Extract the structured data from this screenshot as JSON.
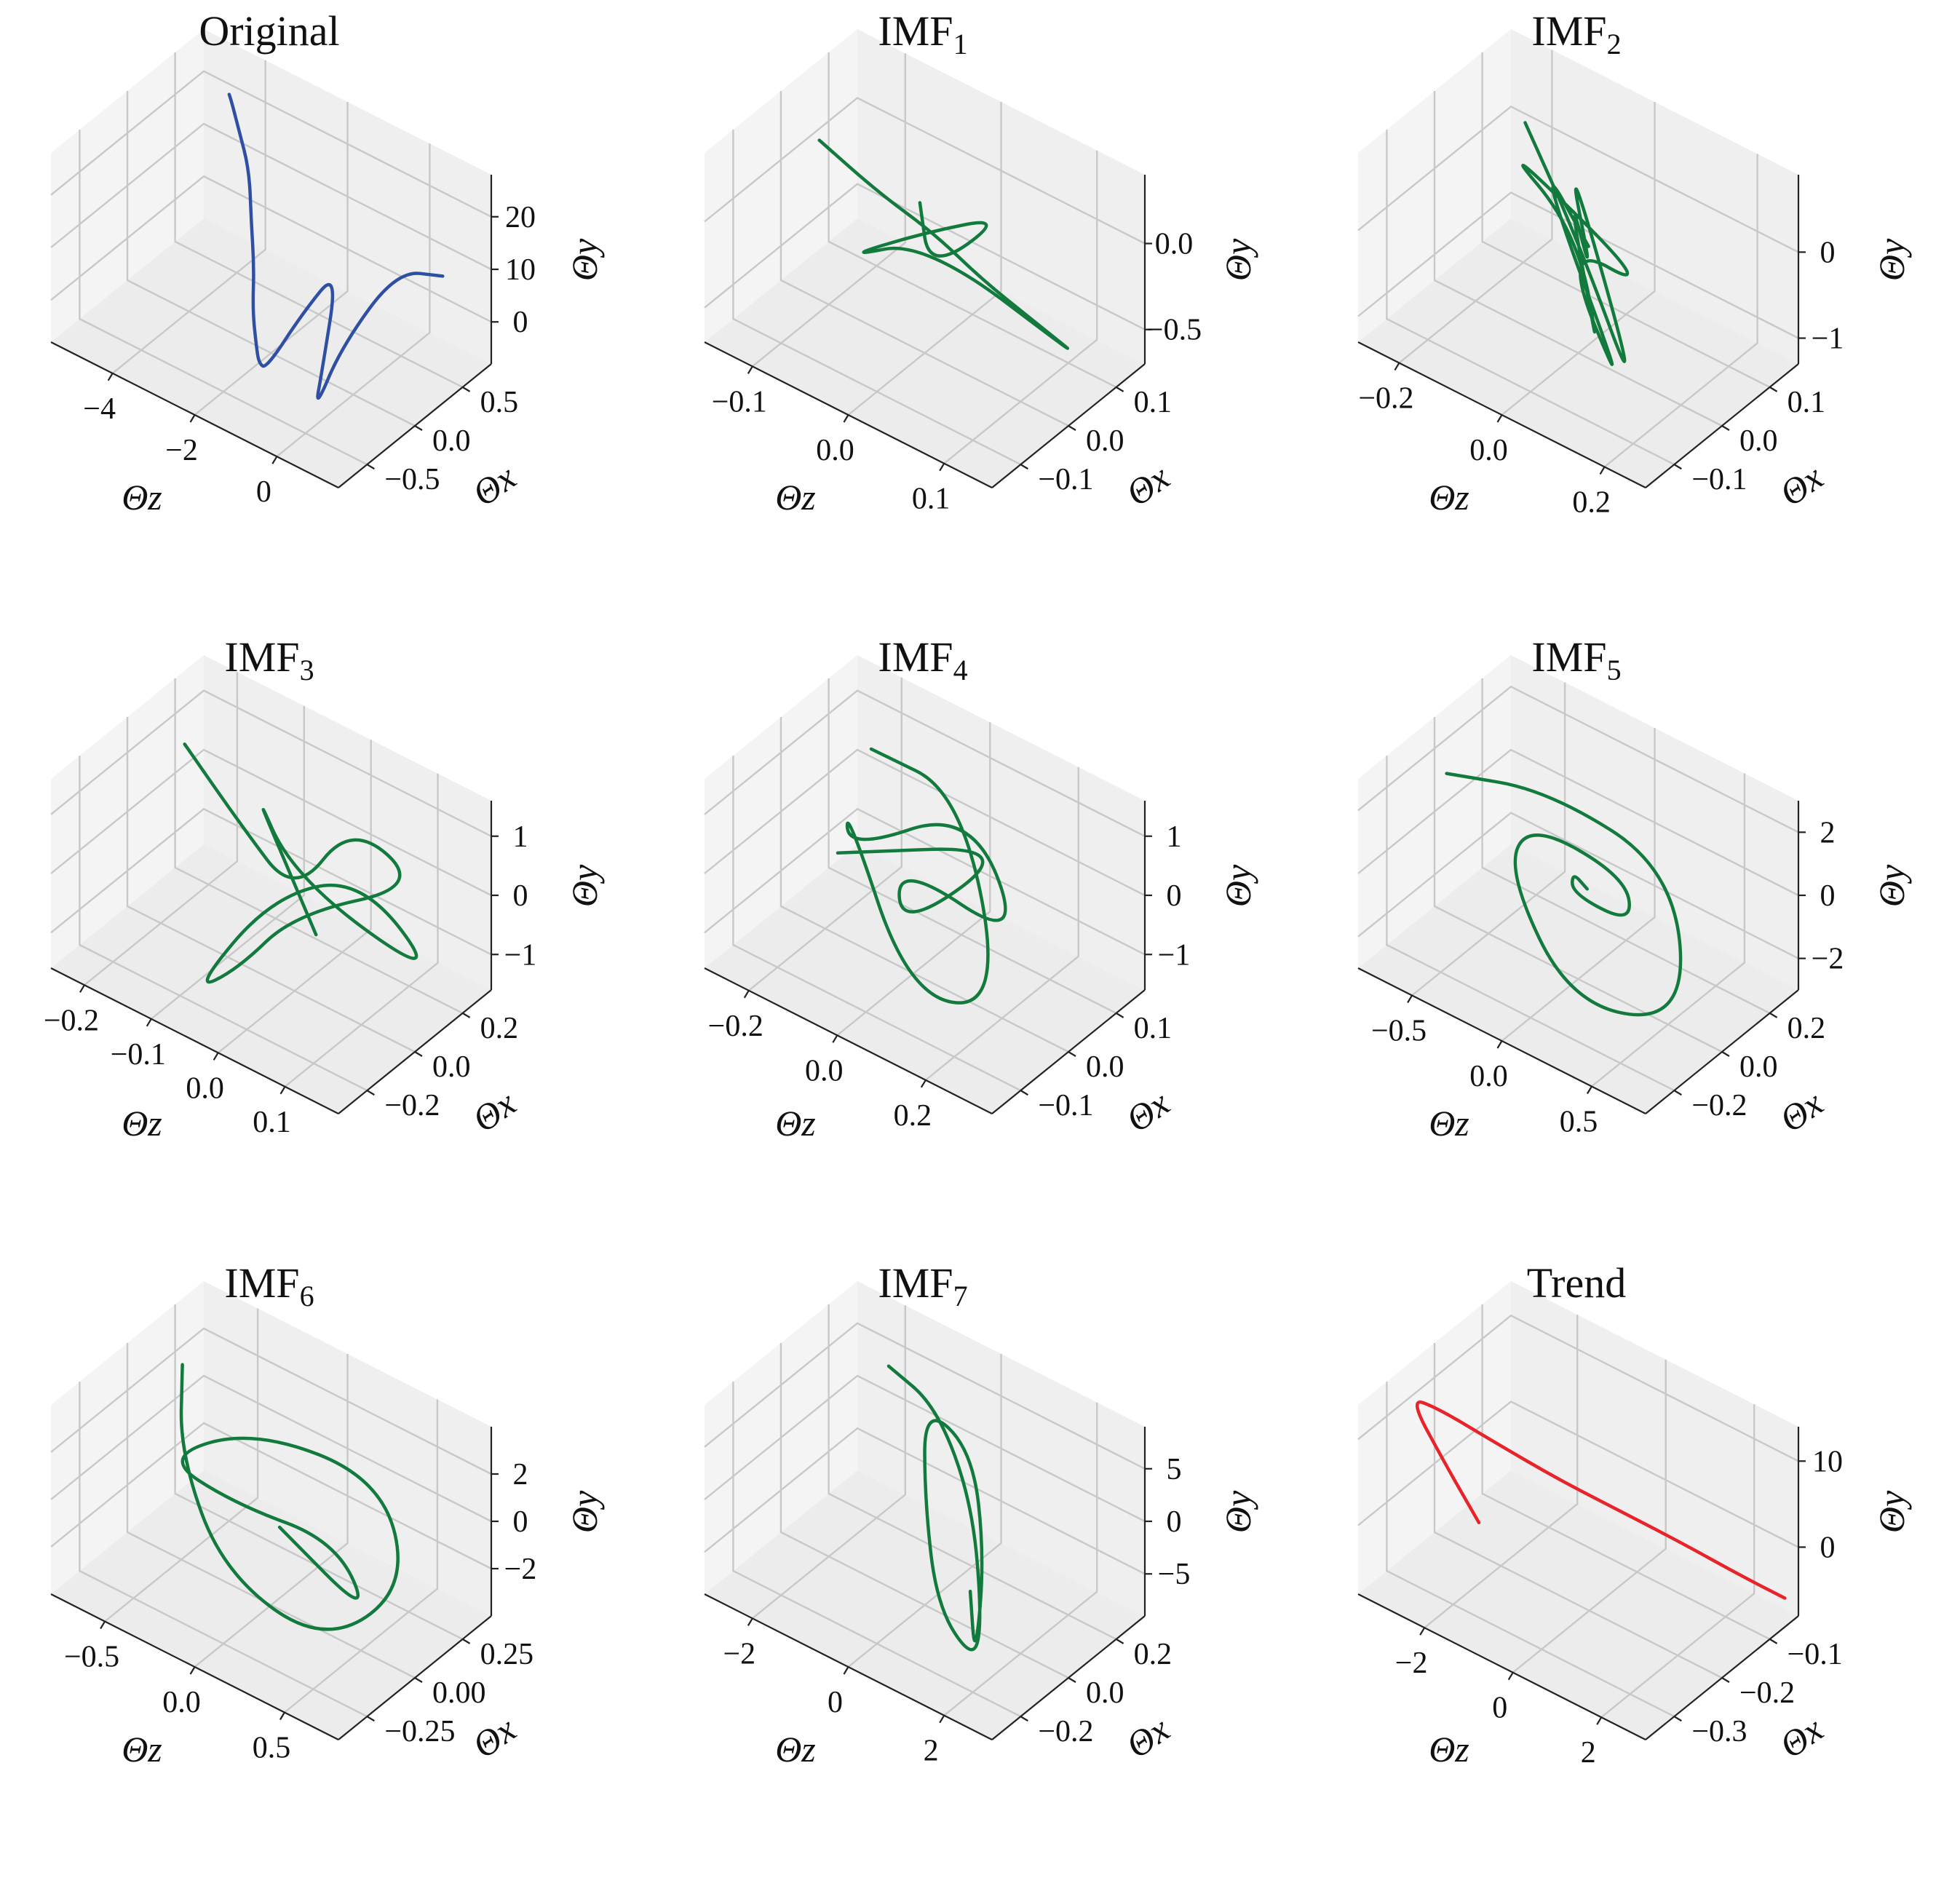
{
  "figure": {
    "colors": {
      "original": "#2f4fa3",
      "imf": "#127a3c",
      "trend": "#e8232a"
    },
    "icons": []
  },
  "chart_data": [
    {
      "type": "line3d",
      "title": "Original",
      "title_base": "Original",
      "title_sub": "",
      "xlabel": "Θz",
      "ylabel": "Θx",
      "zlabel": "Θy",
      "series_color": "original",
      "z_ticks": [
        -4,
        -2,
        0
      ],
      "z_tick_labels": [
        "−4",
        "−2",
        "0"
      ],
      "zlim": [
        -5.5,
        1.5
      ],
      "x_ticks": [
        -0.5,
        0.0,
        0.5
      ],
      "x_tick_labels": [
        "−0.5",
        "0.0",
        "0.5"
      ],
      "xlim": [
        -0.8,
        0.8
      ],
      "y_ticks": [
        0,
        10,
        20
      ],
      "y_tick_labels": [
        "0",
        "10",
        "20"
      ],
      "ylim": [
        -8,
        28
      ],
      "curve": {
        "z": [
          -4.3,
          -4.0,
          -3.6,
          -3.0,
          -2.6,
          -2.3,
          -2.1,
          -1.9,
          -1.6,
          -1.3,
          -1.0,
          -0.6,
          -0.3,
          0.0,
          0.3,
          0.6,
          0.9
        ],
        "x": [
          0.55,
          0.45,
          0.35,
          0.2,
          0.05,
          -0.05,
          -0.15,
          -0.2,
          -0.3,
          -0.35,
          -0.1,
          0.1,
          -0.2,
          -0.4,
          -0.25,
          0.2,
          0.55
        ],
        "y": [
          24,
          25,
          23,
          20,
          14,
          8,
          2,
          -3,
          -4,
          -3,
          5,
          12,
          -2,
          -5,
          6,
          15,
          10
        ]
      }
    },
    {
      "type": "line3d",
      "title": "IMF1",
      "title_base": "IMF",
      "title_sub": "1",
      "xlabel": "Θz",
      "ylabel": "Θx",
      "zlabel": "Θy",
      "series_color": "imf",
      "z_ticks": [
        -0.1,
        0.0,
        0.1
      ],
      "z_tick_labels": [
        "−0.1",
        "0.0",
        "0.1"
      ],
      "zlim": [
        -0.15,
        0.15
      ],
      "x_ticks": [
        -0.1,
        0.0,
        0.1
      ],
      "x_tick_labels": [
        "−0.1",
        "0.0",
        "0.1"
      ],
      "xlim": [
        -0.16,
        0.16
      ],
      "y_ticks": [
        -0.5,
        0.0
      ],
      "y_tick_labels": [
        "−0.5",
        "0.0"
      ],
      "ylim": [
        -0.7,
        0.4
      ],
      "curve": {
        "z": [
          -0.1,
          -0.05,
          0.0,
          0.04,
          0.08,
          0.12,
          0.0,
          -0.06,
          0.0,
          0.06,
          0.02,
          -0.02
        ],
        "x": [
          -0.02,
          0.0,
          0.02,
          0.04,
          0.07,
          0.1,
          0.0,
          -0.05,
          0.0,
          0.05,
          -0.03,
          0.03
        ],
        "y": [
          0.3,
          0.1,
          -0.05,
          -0.25,
          -0.45,
          -0.65,
          -0.05,
          -0.2,
          0.0,
          0.15,
          -0.1,
          0.05
        ]
      }
    },
    {
      "type": "line3d",
      "title": "IMF2",
      "title_base": "IMF",
      "title_sub": "2",
      "xlabel": "Θz",
      "ylabel": "Θx",
      "zlabel": "Θy",
      "series_color": "imf",
      "z_ticks": [
        -0.2,
        0.0,
        0.2
      ],
      "z_tick_labels": [
        "−0.2",
        "0.0",
        "0.2"
      ],
      "zlim": [
        -0.28,
        0.28
      ],
      "x_ticks": [
        -0.1,
        0.0,
        0.1
      ],
      "x_tick_labels": [
        "−0.1",
        "0.0",
        "0.1"
      ],
      "xlim": [
        -0.16,
        0.16
      ],
      "y_ticks": [
        -1,
        0
      ],
      "y_tick_labels": [
        "−1",
        "0"
      ],
      "ylim": [
        -1.3,
        0.9
      ],
      "curve": {
        "z": [
          -0.15,
          0.0,
          0.18,
          -0.1,
          0.05,
          -0.05,
          0.12,
          0.0,
          -0.18,
          0.1,
          0.0,
          0.2,
          -0.12,
          0.02
        ],
        "x": [
          0.05,
          0.0,
          -0.06,
          0.08,
          -0.02,
          0.03,
          -0.08,
          0.0,
          0.02,
          0.06,
          -0.04,
          -0.1,
          0.04,
          0.0
        ],
        "y": [
          0.7,
          0.0,
          -1.2,
          0.5,
          -0.3,
          0.4,
          -0.8,
          0.1,
          0.6,
          -0.6,
          0.2,
          -1.0,
          0.5,
          0.0
        ]
      }
    },
    {
      "type": "line3d",
      "title": "IMF3",
      "title_base": "IMF",
      "title_sub": "3",
      "xlabel": "Θz",
      "ylabel": "Θx",
      "zlabel": "Θy",
      "series_color": "imf",
      "z_ticks": [
        -0.2,
        -0.1,
        0.0,
        0.1
      ],
      "z_tick_labels": [
        "−0.2",
        "−0.1",
        "0.0",
        "0.1"
      ],
      "zlim": [
        -0.25,
        0.18
      ],
      "x_ticks": [
        -0.2,
        0.0,
        0.2
      ],
      "x_tick_labels": [
        "−0.2",
        "0.0",
        "0.2"
      ],
      "xlim": [
        -0.32,
        0.32
      ],
      "y_ticks": [
        -1,
        0,
        1
      ],
      "y_tick_labels": [
        "−1",
        "0",
        "1"
      ],
      "ylim": [
        -1.6,
        1.6
      ],
      "curve": {
        "z": [
          -0.2,
          -0.1,
          0.0,
          0.05,
          0.12,
          0.0,
          -0.05,
          -0.08,
          0.02,
          0.1,
          0.15,
          0.0,
          -0.12,
          0.05
        ],
        "x": [
          0.1,
          0.05,
          0.0,
          0.1,
          0.2,
          0.0,
          -0.1,
          -0.2,
          -0.15,
          0.0,
          0.2,
          0.0,
          0.15,
          -0.05
        ],
        "y": [
          1.1,
          0.5,
          0.0,
          1.2,
          0.2,
          -0.3,
          -1.2,
          -1.4,
          0.6,
          0.9,
          -1.3,
          0.3,
          0.8,
          -0.2
        ]
      }
    },
    {
      "type": "line3d",
      "title": "IMF4",
      "title_base": "IMF",
      "title_sub": "4",
      "xlabel": "Θz",
      "ylabel": "Θx",
      "zlabel": "Θy",
      "series_color": "imf",
      "z_ticks": [
        -0.2,
        0.0,
        0.2
      ],
      "z_tick_labels": [
        "−0.2",
        "0.0",
        "0.2"
      ],
      "zlim": [
        -0.3,
        0.35
      ],
      "x_ticks": [
        -0.1,
        0.0,
        0.1
      ],
      "x_tick_labels": [
        "−0.1",
        "0.0",
        "0.1"
      ],
      "xlim": [
        -0.16,
        0.16
      ],
      "y_ticks": [
        -1,
        0,
        1
      ],
      "y_tick_labels": [
        "−1",
        "0",
        "1"
      ],
      "ylim": [
        -1.6,
        1.6
      ],
      "curve": {
        "z": [
          -0.15,
          0.0,
          0.2,
          0.1,
          -0.1,
          -0.2,
          0.0,
          0.25,
          0.05,
          -0.05,
          0.15,
          -0.15
        ],
        "x": [
          0.05,
          0.1,
          0.0,
          -0.1,
          -0.05,
          0.05,
          0.12,
          0.0,
          -0.08,
          0.02,
          0.08,
          -0.02
        ],
        "y": [
          1.3,
          0.8,
          -1.4,
          -1.0,
          1.2,
          -0.6,
          0.4,
          -0.2,
          1.0,
          -1.2,
          0.6,
          0.0
        ]
      }
    },
    {
      "type": "line3d",
      "title": "IMF5",
      "title_base": "IMF",
      "title_sub": "5",
      "xlabel": "Θz",
      "ylabel": "Θx",
      "zlabel": "Θy",
      "series_color": "imf",
      "z_ticks": [
        -0.5,
        0.0,
        0.5
      ],
      "z_tick_labels": [
        "−0.5",
        "0.0",
        "0.5"
      ],
      "zlim": [
        -0.8,
        0.8
      ],
      "x_ticks": [
        -0.2,
        0.0,
        0.2
      ],
      "x_tick_labels": [
        "−0.2",
        "0.0",
        "0.2"
      ],
      "xlim": [
        -0.32,
        0.32
      ],
      "y_ticks": [
        -2,
        0,
        2
      ],
      "y_tick_labels": [
        "−2",
        "0",
        "2"
      ],
      "ylim": [
        -3.0,
        3.0
      ],
      "curve": {
        "z": [
          -0.6,
          -0.3,
          0.2,
          0.6,
          0.3,
          -0.2,
          -0.4,
          0.0,
          0.3,
          0.1,
          -0.1,
          0.05
        ],
        "x": [
          -0.1,
          0.1,
          0.25,
          0.0,
          -0.25,
          -0.15,
          0.1,
          0.2,
          0.0,
          -0.1,
          0.05,
          0.0
        ],
        "y": [
          2.4,
          1.5,
          -0.5,
          -2.6,
          -1.5,
          0.8,
          0.2,
          -1.0,
          -0.4,
          0.6,
          -0.2,
          0.0
        ]
      }
    },
    {
      "type": "line3d",
      "title": "IMF6",
      "title_base": "IMF",
      "title_sub": "6",
      "xlabel": "Θz",
      "ylabel": "Θx",
      "zlabel": "Θy",
      "series_color": "imf",
      "z_ticks": [
        -0.5,
        0.0,
        0.5
      ],
      "z_tick_labels": [
        "−0.5",
        "0.0",
        "0.5"
      ],
      "zlim": [
        -0.8,
        0.8
      ],
      "x_ticks": [
        -0.25,
        0.0,
        0.25
      ],
      "x_tick_labels": [
        "−0.25",
        "0.00",
        "0.25"
      ],
      "xlim": [
        -0.4,
        0.4
      ],
      "y_ticks": [
        -2,
        0,
        2
      ],
      "y_tick_labels": [
        "−2",
        "0",
        "2"
      ],
      "ylim": [
        -4.0,
        4.0
      ],
      "curve": {
        "z": [
          -0.6,
          -0.4,
          0.0,
          0.4,
          0.6,
          0.3,
          -0.2,
          -0.5,
          -0.2,
          0.2,
          0.5,
          0.1
        ],
        "x": [
          0.1,
          -0.1,
          -0.25,
          -0.1,
          0.15,
          0.3,
          0.1,
          -0.1,
          0.0,
          0.15,
          0.05,
          -0.05
        ],
        "y": [
          3.2,
          1.5,
          -1.0,
          -3.5,
          -2.0,
          0.5,
          2.0,
          1.0,
          -0.5,
          -1.5,
          -3.0,
          0.0
        ]
      }
    },
    {
      "type": "line3d",
      "title": "IMF7",
      "title_base": "IMF",
      "title_sub": "7",
      "xlabel": "Θz",
      "ylabel": "Θx",
      "zlabel": "Θy",
      "series_color": "imf",
      "z_ticks": [
        -2,
        0,
        2
      ],
      "z_tick_labels": [
        "−2",
        "0",
        "2"
      ],
      "zlim": [
        -3.0,
        3.0
      ],
      "x_ticks": [
        -0.2,
        0.0,
        0.2
      ],
      "x_tick_labels": [
        "−0.2",
        "0.0",
        "0.2"
      ],
      "xlim": [
        -0.32,
        0.32
      ],
      "y_ticks": [
        -5,
        0,
        5
      ],
      "y_tick_labels": [
        "−5",
        "0",
        "5"
      ],
      "ylim": [
        -9,
        9
      ],
      "curve": {
        "z": [
          -1.5,
          -1.0,
          0.0,
          1.2,
          2.0,
          1.5,
          0.5,
          -0.5,
          0.0,
          1.0,
          1.8,
          1.2
        ],
        "x": [
          0.15,
          0.25,
          0.2,
          0.0,
          -0.2,
          -0.25,
          -0.1,
          0.1,
          0.2,
          0.05,
          -0.15,
          -0.05
        ],
        "y": [
          7.5,
          3.0,
          -3.0,
          -8.0,
          -6.0,
          -1.0,
          4.0,
          7.0,
          2.0,
          -3.0,
          -7.5,
          -4.0
        ]
      }
    },
    {
      "type": "line3d",
      "title": "Trend",
      "title_base": "Trend",
      "title_sub": "",
      "xlabel": "Θz",
      "ylabel": "Θx",
      "zlabel": "Θy",
      "series_color": "trend",
      "z_ticks": [
        -2,
        0,
        2
      ],
      "z_tick_labels": [
        "−2",
        "0",
        "2"
      ],
      "zlim": [
        -3.5,
        3.0
      ],
      "x_ticks": [
        -0.3,
        -0.2,
        -0.1
      ],
      "x_tick_labels": [
        "−0.3",
        "−0.2",
        "−0.1"
      ],
      "xlim": [
        -0.36,
        -0.04
      ],
      "y_ticks": [
        0,
        10
      ],
      "y_tick_labels": [
        "0",
        "10"
      ],
      "ylim": [
        -8,
        14
      ],
      "curve": {
        "z": [
          -1.2,
          -2.2,
          -3.2,
          -2.8,
          -2.0,
          -1.0,
          0.0,
          1.0,
          2.0,
          2.8
        ],
        "x": [
          -0.32,
          -0.3,
          -0.28,
          -0.26,
          -0.22,
          -0.18,
          -0.14,
          -0.1,
          -0.07,
          -0.05
        ],
        "y": [
          4.5,
          8.0,
          12.0,
          11.0,
          7.5,
          4.0,
          1.0,
          -2.0,
          -4.5,
          -6.0
        ]
      }
    }
  ]
}
